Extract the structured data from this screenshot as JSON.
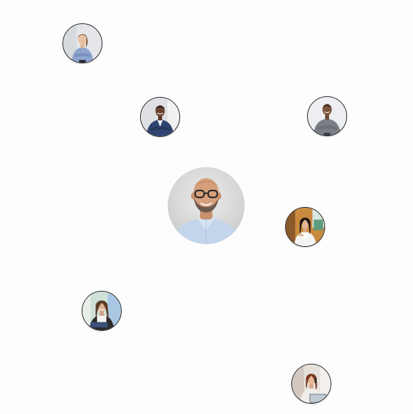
{
  "network": {
    "center_profile": {
      "icon": "profile-photo-bald-man-glasses"
    },
    "connections": [
      {
        "icon": "profile-photo-woman-blue-shirt"
      },
      {
        "icon": "profile-photo-man-navy-suit"
      },
      {
        "icon": "profile-photo-man-gray-shirt"
      },
      {
        "icon": "profile-photo-woman-cafe"
      },
      {
        "icon": "profile-photo-woman-laptop"
      },
      {
        "icon": "profile-photo-woman-desk"
      }
    ]
  },
  "colors": {
    "background": "#fdfdfd",
    "avatar_border": "#1b1b1b"
  }
}
